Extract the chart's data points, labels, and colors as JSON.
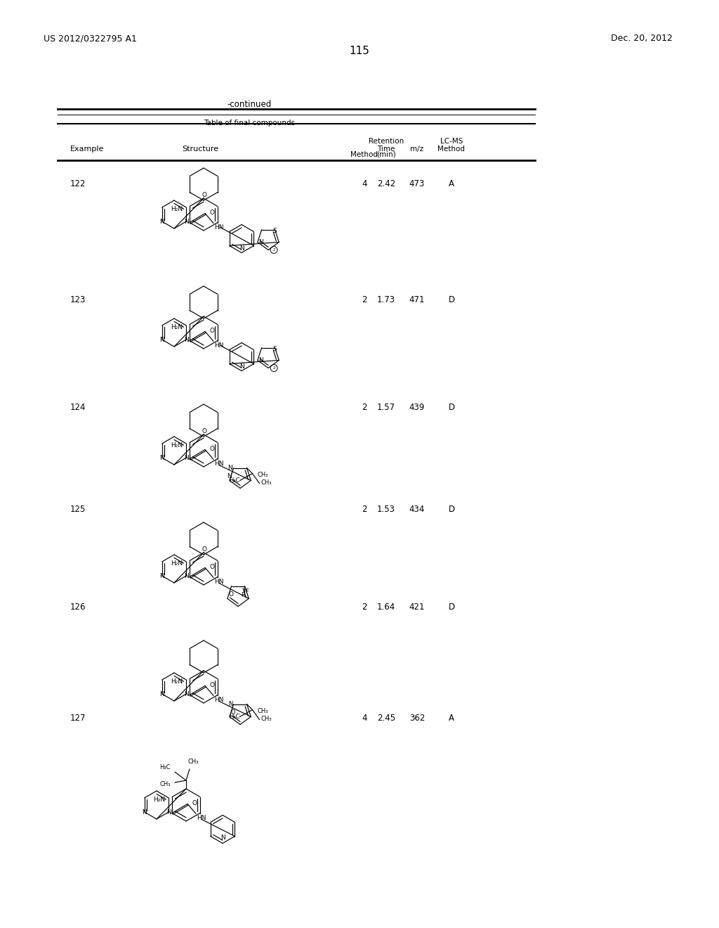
{
  "page_number": "115",
  "patent_number": "US 2012/0322795 A1",
  "patent_date": "Dec. 20, 2012",
  "continued_text": "-continued",
  "table_title": "Table of final compounds",
  "rows": [
    {
      "example": "122",
      "method": "4",
      "retention": "2.42",
      "mz": "473",
      "lcms": "A"
    },
    {
      "example": "123",
      "method": "2",
      "retention": "1.73",
      "mz": "471",
      "lcms": "D"
    },
    {
      "example": "124",
      "method": "2",
      "retention": "1.57",
      "mz": "439",
      "lcms": "D"
    },
    {
      "example": "125",
      "method": "2",
      "retention": "1.53",
      "mz": "434",
      "lcms": "D"
    },
    {
      "example": "126",
      "method": "2",
      "retention": "1.64",
      "mz": "421",
      "lcms": "D"
    },
    {
      "example": "127",
      "method": "4",
      "retention": "2.45",
      "mz": "362",
      "lcms": "A"
    }
  ],
  "background_color": "#ffffff",
  "text_color": "#000000"
}
